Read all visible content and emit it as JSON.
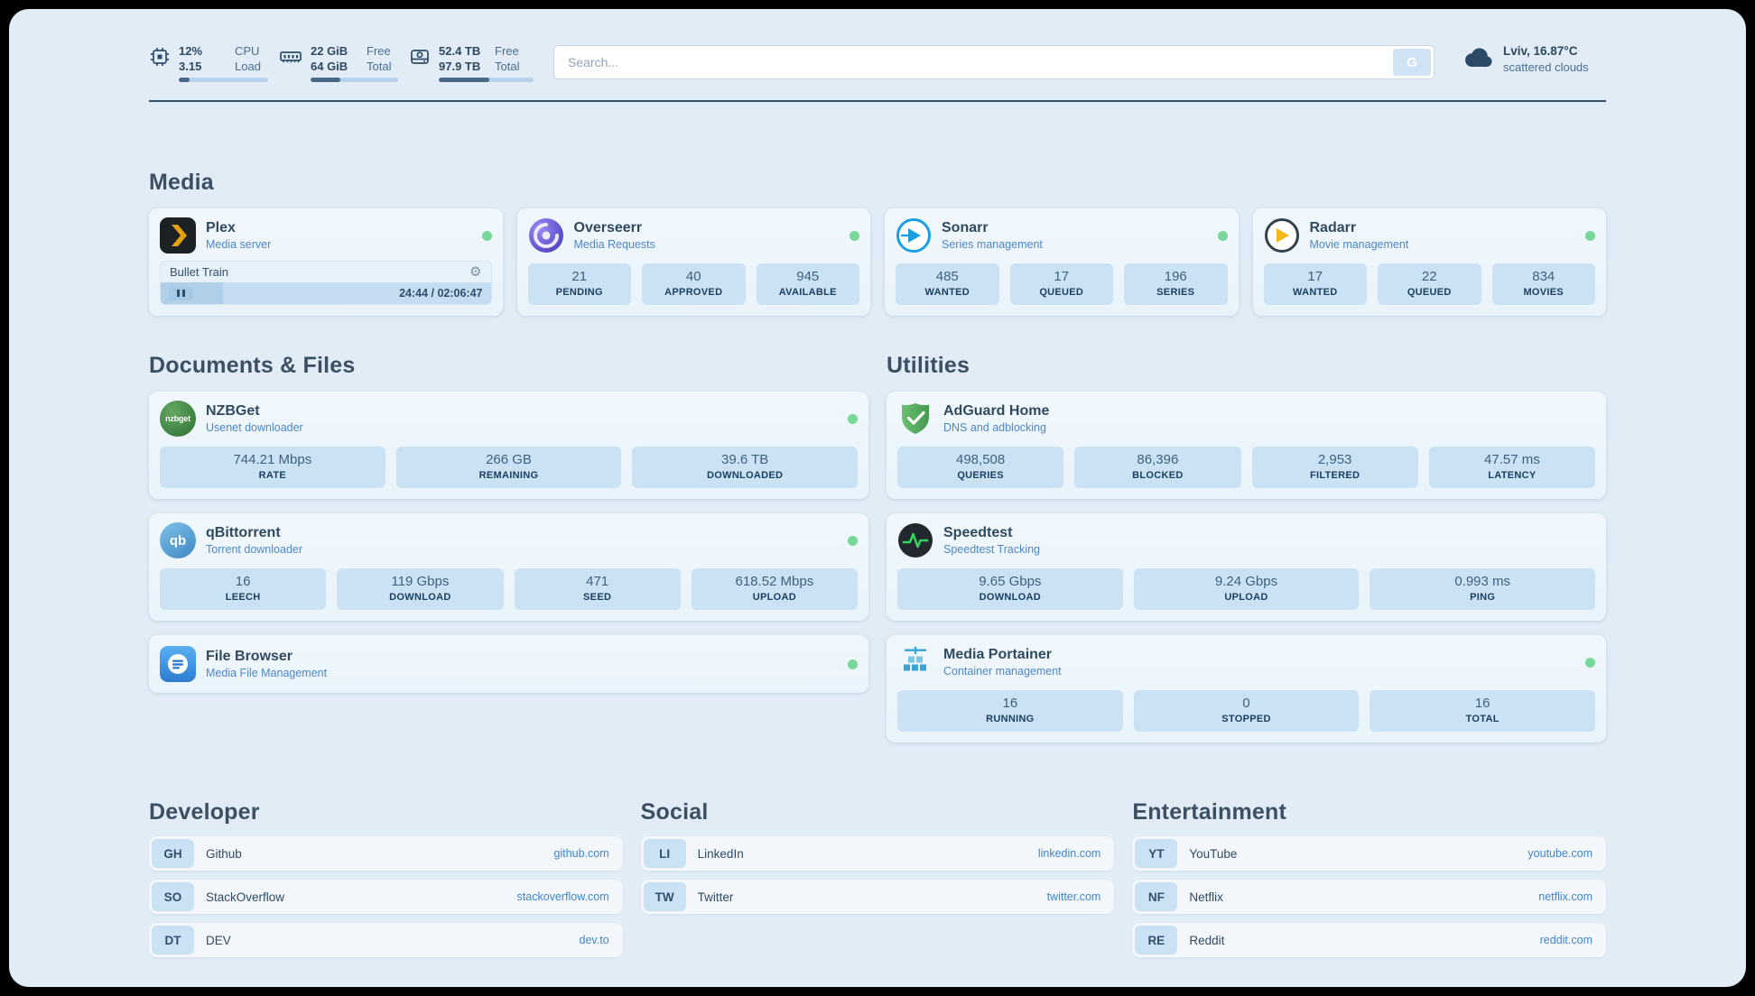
{
  "colors": {
    "page_bg": "#e1ecf7",
    "stat_box_bg": "#cbe2f5",
    "accent_link": "#3f86cf",
    "status_online": "#77d89a",
    "text_primary": "#30495f",
    "subtitle_blue": "#4e86c8"
  },
  "topbar": {
    "cpu": {
      "value": "12%",
      "sub": "3.15",
      "label": "CPU",
      "sublabel": "Load",
      "pct": 12
    },
    "memory": {
      "value": "22 GiB",
      "sub": "64 GiB",
      "label": "Free",
      "sublabel": "Total",
      "pct": 34
    },
    "disk": {
      "value": "52.4 TB",
      "sub": "97.9 TB",
      "label": "Free",
      "sublabel": "Total",
      "pct": 53
    },
    "search": {
      "placeholder": "Search...",
      "button": "G"
    },
    "weather": {
      "location": "Lviv, 16.87°C",
      "condition": "scattered clouds"
    }
  },
  "media": {
    "title": "Media",
    "plex": {
      "name": "Plex",
      "subtitle": "Media server",
      "now_playing": "Bullet Train",
      "time": "24:44 / 02:06:47",
      "progress_pct": 19
    },
    "overseerr": {
      "name": "Overseerr",
      "subtitle": "Media Requests",
      "stats": [
        {
          "value": "21",
          "label": "PENDING"
        },
        {
          "value": "40",
          "label": "APPROVED"
        },
        {
          "value": "945",
          "label": "AVAILABLE"
        }
      ]
    },
    "sonarr": {
      "name": "Sonarr",
      "subtitle": "Series management",
      "stats": [
        {
          "value": "485",
          "label": "WANTED"
        },
        {
          "value": "17",
          "label": "QUEUED"
        },
        {
          "value": "196",
          "label": "SERIES"
        }
      ]
    },
    "radarr": {
      "name": "Radarr",
      "subtitle": "Movie management",
      "stats": [
        {
          "value": "17",
          "label": "WANTED"
        },
        {
          "value": "22",
          "label": "QUEUED"
        },
        {
          "value": "834",
          "label": "MOVIES"
        }
      ]
    }
  },
  "documents": {
    "title": "Documents & Files",
    "nzbget": {
      "name": "NZBGet",
      "subtitle": "Usenet downloader",
      "logo_text": "nzbget",
      "stats": [
        {
          "value": "744.21 Mbps",
          "label": "RATE"
        },
        {
          "value": "266 GB",
          "label": "REMAINING"
        },
        {
          "value": "39.6 TB",
          "label": "DOWNLOADED"
        }
      ]
    },
    "qbittorrent": {
      "name": "qBittorrent",
      "subtitle": "Torrent downloader",
      "logo_text": "qb",
      "stats": [
        {
          "value": "16",
          "label": "LEECH"
        },
        {
          "value": "119 Gbps",
          "label": "DOWNLOAD"
        },
        {
          "value": "471",
          "label": "SEED"
        },
        {
          "value": "618.52 Mbps",
          "label": "UPLOAD"
        }
      ]
    },
    "filebrowser": {
      "name": "File Browser",
      "subtitle": "Media File Management"
    }
  },
  "utilities": {
    "title": "Utilities",
    "adguard": {
      "name": "AdGuard Home",
      "subtitle": "DNS and adblocking",
      "stats": [
        {
          "value": "498,508",
          "label": "QUERIES"
        },
        {
          "value": "86,396",
          "label": "BLOCKED"
        },
        {
          "value": "2,953",
          "label": "FILTERED"
        },
        {
          "value": "47.57 ms",
          "label": "LATENCY"
        }
      ]
    },
    "speedtest": {
      "name": "Speedtest",
      "subtitle": "Speedtest Tracking",
      "stats": [
        {
          "value": "9.65 Gbps",
          "label": "DOWNLOAD"
        },
        {
          "value": "9.24 Gbps",
          "label": "UPLOAD"
        },
        {
          "value": "0.993 ms",
          "label": "PING"
        }
      ]
    },
    "portainer": {
      "name": "Media Portainer",
      "subtitle": "Container management",
      "stats": [
        {
          "value": "16",
          "label": "RUNNING"
        },
        {
          "value": "0",
          "label": "STOPPED"
        },
        {
          "value": "16",
          "label": "TOTAL"
        }
      ]
    }
  },
  "bookmarks": {
    "developer": {
      "title": "Developer",
      "items": [
        {
          "abbr": "GH",
          "name": "Github",
          "url": "github.com"
        },
        {
          "abbr": "SO",
          "name": "StackOverflow",
          "url": "stackoverflow.com"
        },
        {
          "abbr": "DT",
          "name": "DEV",
          "url": "dev.to"
        }
      ]
    },
    "social": {
      "title": "Social",
      "items": [
        {
          "abbr": "LI",
          "name": "LinkedIn",
          "url": "linkedin.com"
        },
        {
          "abbr": "TW",
          "name": "Twitter",
          "url": "twitter.com"
        }
      ]
    },
    "entertainment": {
      "title": "Entertainment",
      "items": [
        {
          "abbr": "YT",
          "name": "YouTube",
          "url": "youtube.com"
        },
        {
          "abbr": "NF",
          "name": "Netflix",
          "url": "netflix.com"
        },
        {
          "abbr": "RE",
          "name": "Reddit",
          "url": "reddit.com"
        }
      ]
    }
  }
}
